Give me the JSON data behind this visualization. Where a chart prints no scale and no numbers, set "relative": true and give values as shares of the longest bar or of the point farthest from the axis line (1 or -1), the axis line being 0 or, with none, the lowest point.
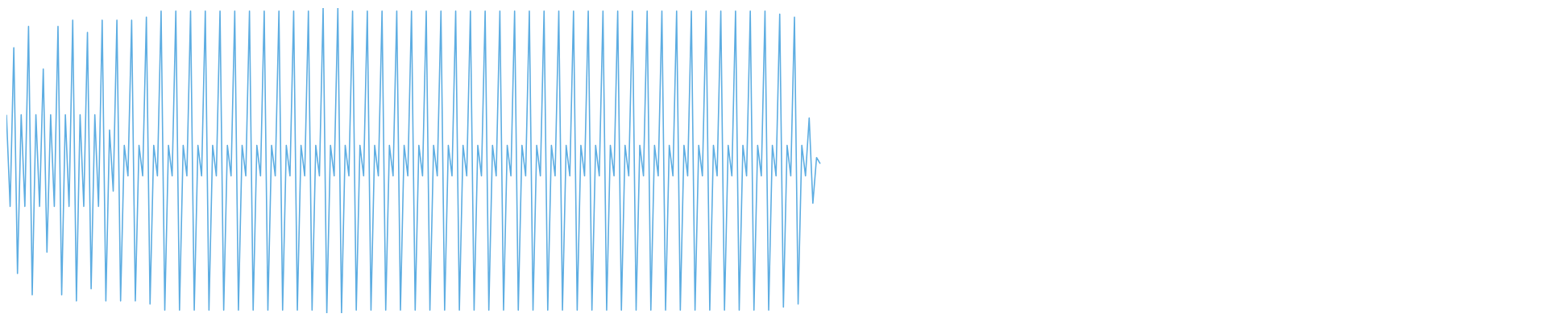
{
  "chart_data": {
    "type": "line",
    "relative": true,
    "tick_labels": false,
    "categories": [
      null,
      null,
      null,
      null,
      null,
      null,
      null,
      null,
      null,
      null,
      null,
      null,
      null,
      null,
      null,
      null,
      null,
      null,
      null,
      null,
      null,
      null,
      null,
      null,
      null,
      null,
      null,
      null,
      null,
      null,
      null,
      null,
      null,
      null,
      null,
      null,
      null,
      null,
      null,
      null,
      null,
      null,
      null,
      null,
      null,
      null,
      null,
      null,
      null,
      null,
      null,
      null,
      null,
      null,
      null,
      null,
      null,
      null,
      null,
      null,
      null,
      null,
      null,
      null,
      null,
      null,
      null,
      null,
      null,
      null,
      null,
      null,
      null,
      null,
      null,
      null,
      null,
      null,
      null,
      null,
      null,
      null,
      null,
      null,
      null,
      null,
      null,
      null,
      null,
      null,
      null,
      null,
      null,
      null,
      null,
      null,
      null,
      null,
      null,
      null,
      null,
      null,
      null,
      null,
      null,
      null,
      null,
      null,
      null,
      null,
      null,
      null,
      null,
      null,
      null,
      null,
      null,
      null,
      null,
      null,
      null,
      null,
      null,
      null,
      null,
      null,
      null,
      null,
      null,
      null,
      null,
      null,
      null,
      null,
      null,
      null,
      null,
      null,
      null,
      null,
      null,
      null,
      null,
      null,
      null,
      null,
      null,
      null,
      null,
      null,
      null,
      null,
      null,
      null,
      null,
      null,
      null,
      null,
      null,
      null,
      null,
      null,
      null,
      null,
      null,
      null,
      null,
      null,
      null,
      null,
      null,
      null,
      null,
      null,
      null,
      null,
      null,
      null,
      null,
      null,
      null,
      null,
      null,
      null,
      null,
      null,
      null,
      null,
      null,
      null,
      null,
      null,
      null,
      null,
      null,
      null,
      null,
      null,
      null,
      null,
      null,
      null,
      null,
      null,
      null,
      null,
      null,
      null,
      null,
      null,
      null,
      null,
      null,
      null,
      null,
      null,
      null,
      null,
      null,
      null,
      null,
      null
    ],
    "series": [
      {
        "color": "#5dade2",
        "values": [
          0.65,
          0.35,
          0.87,
          0.13,
          0.65,
          0.35,
          0.94,
          0.06,
          0.65,
          0.35,
          0.8,
          0.2,
          0.65,
          0.35,
          0.94,
          0.06,
          0.65,
          0.35,
          0.96,
          0.04,
          0.65,
          0.35,
          0.92,
          0.08,
          0.65,
          0.35,
          0.96,
          0.04,
          0.6,
          0.4,
          0.96,
          0.04,
          0.55,
          0.45,
          0.96,
          0.04,
          0.55,
          0.45,
          0.97,
          0.03,
          0.55,
          0.45,
          0.99,
          0.01,
          0.55,
          0.45,
          0.99,
          0.01,
          0.55,
          0.45,
          0.99,
          0.01,
          0.55,
          0.45,
          0.99,
          0.01,
          0.55,
          0.45,
          0.99,
          0.01,
          0.55,
          0.45,
          0.99,
          0.01,
          0.55,
          0.45,
          0.99,
          0.01,
          0.55,
          0.45,
          0.99,
          0.01,
          0.55,
          0.45,
          0.99,
          0.01,
          0.55,
          0.45,
          0.99,
          0.01,
          0.55,
          0.45,
          0.99,
          0.01,
          0.55,
          0.45,
          1,
          0,
          0.55,
          0.45,
          1,
          0,
          0.55,
          0.45,
          0.99,
          0.01,
          0.55,
          0.45,
          0.99,
          0.01,
          0.55,
          0.45,
          0.99,
          0.01,
          0.55,
          0.45,
          0.99,
          0.01,
          0.55,
          0.45,
          0.99,
          0.01,
          0.55,
          0.45,
          0.99,
          0.01,
          0.55,
          0.45,
          0.99,
          0.01,
          0.55,
          0.45,
          0.99,
          0.01,
          0.55,
          0.45,
          0.99,
          0.01,
          0.55,
          0.45,
          0.99,
          0.01,
          0.55,
          0.45,
          0.99,
          0.01,
          0.55,
          0.45,
          0.99,
          0.01,
          0.55,
          0.45,
          0.99,
          0.01,
          0.55,
          0.45,
          0.99,
          0.01,
          0.55,
          0.45,
          0.99,
          0.01,
          0.55,
          0.45,
          0.99,
          0.01,
          0.55,
          0.45,
          0.99,
          0.01,
          0.55,
          0.45,
          0.99,
          0.01,
          0.55,
          0.45,
          0.99,
          0.01,
          0.55,
          0.45,
          0.99,
          0.01,
          0.55,
          0.45,
          0.99,
          0.01,
          0.55,
          0.45,
          0.99,
          0.01,
          0.55,
          0.45,
          0.99,
          0.01,
          0.55,
          0.45,
          0.99,
          0.01,
          0.55,
          0.45,
          0.99,
          0.01,
          0.55,
          0.45,
          0.99,
          0.01,
          0.55,
          0.45,
          0.99,
          0.01,
          0.55,
          0.45,
          0.99,
          0.01,
          0.55,
          0.45,
          0.99,
          0.01,
          0.55,
          0.45,
          0.98,
          0.02,
          0.55,
          0.45,
          0.97,
          0.03,
          0.55,
          0.45,
          0.64,
          0.36,
          0.51,
          0.49
        ]
      }
    ]
  }
}
